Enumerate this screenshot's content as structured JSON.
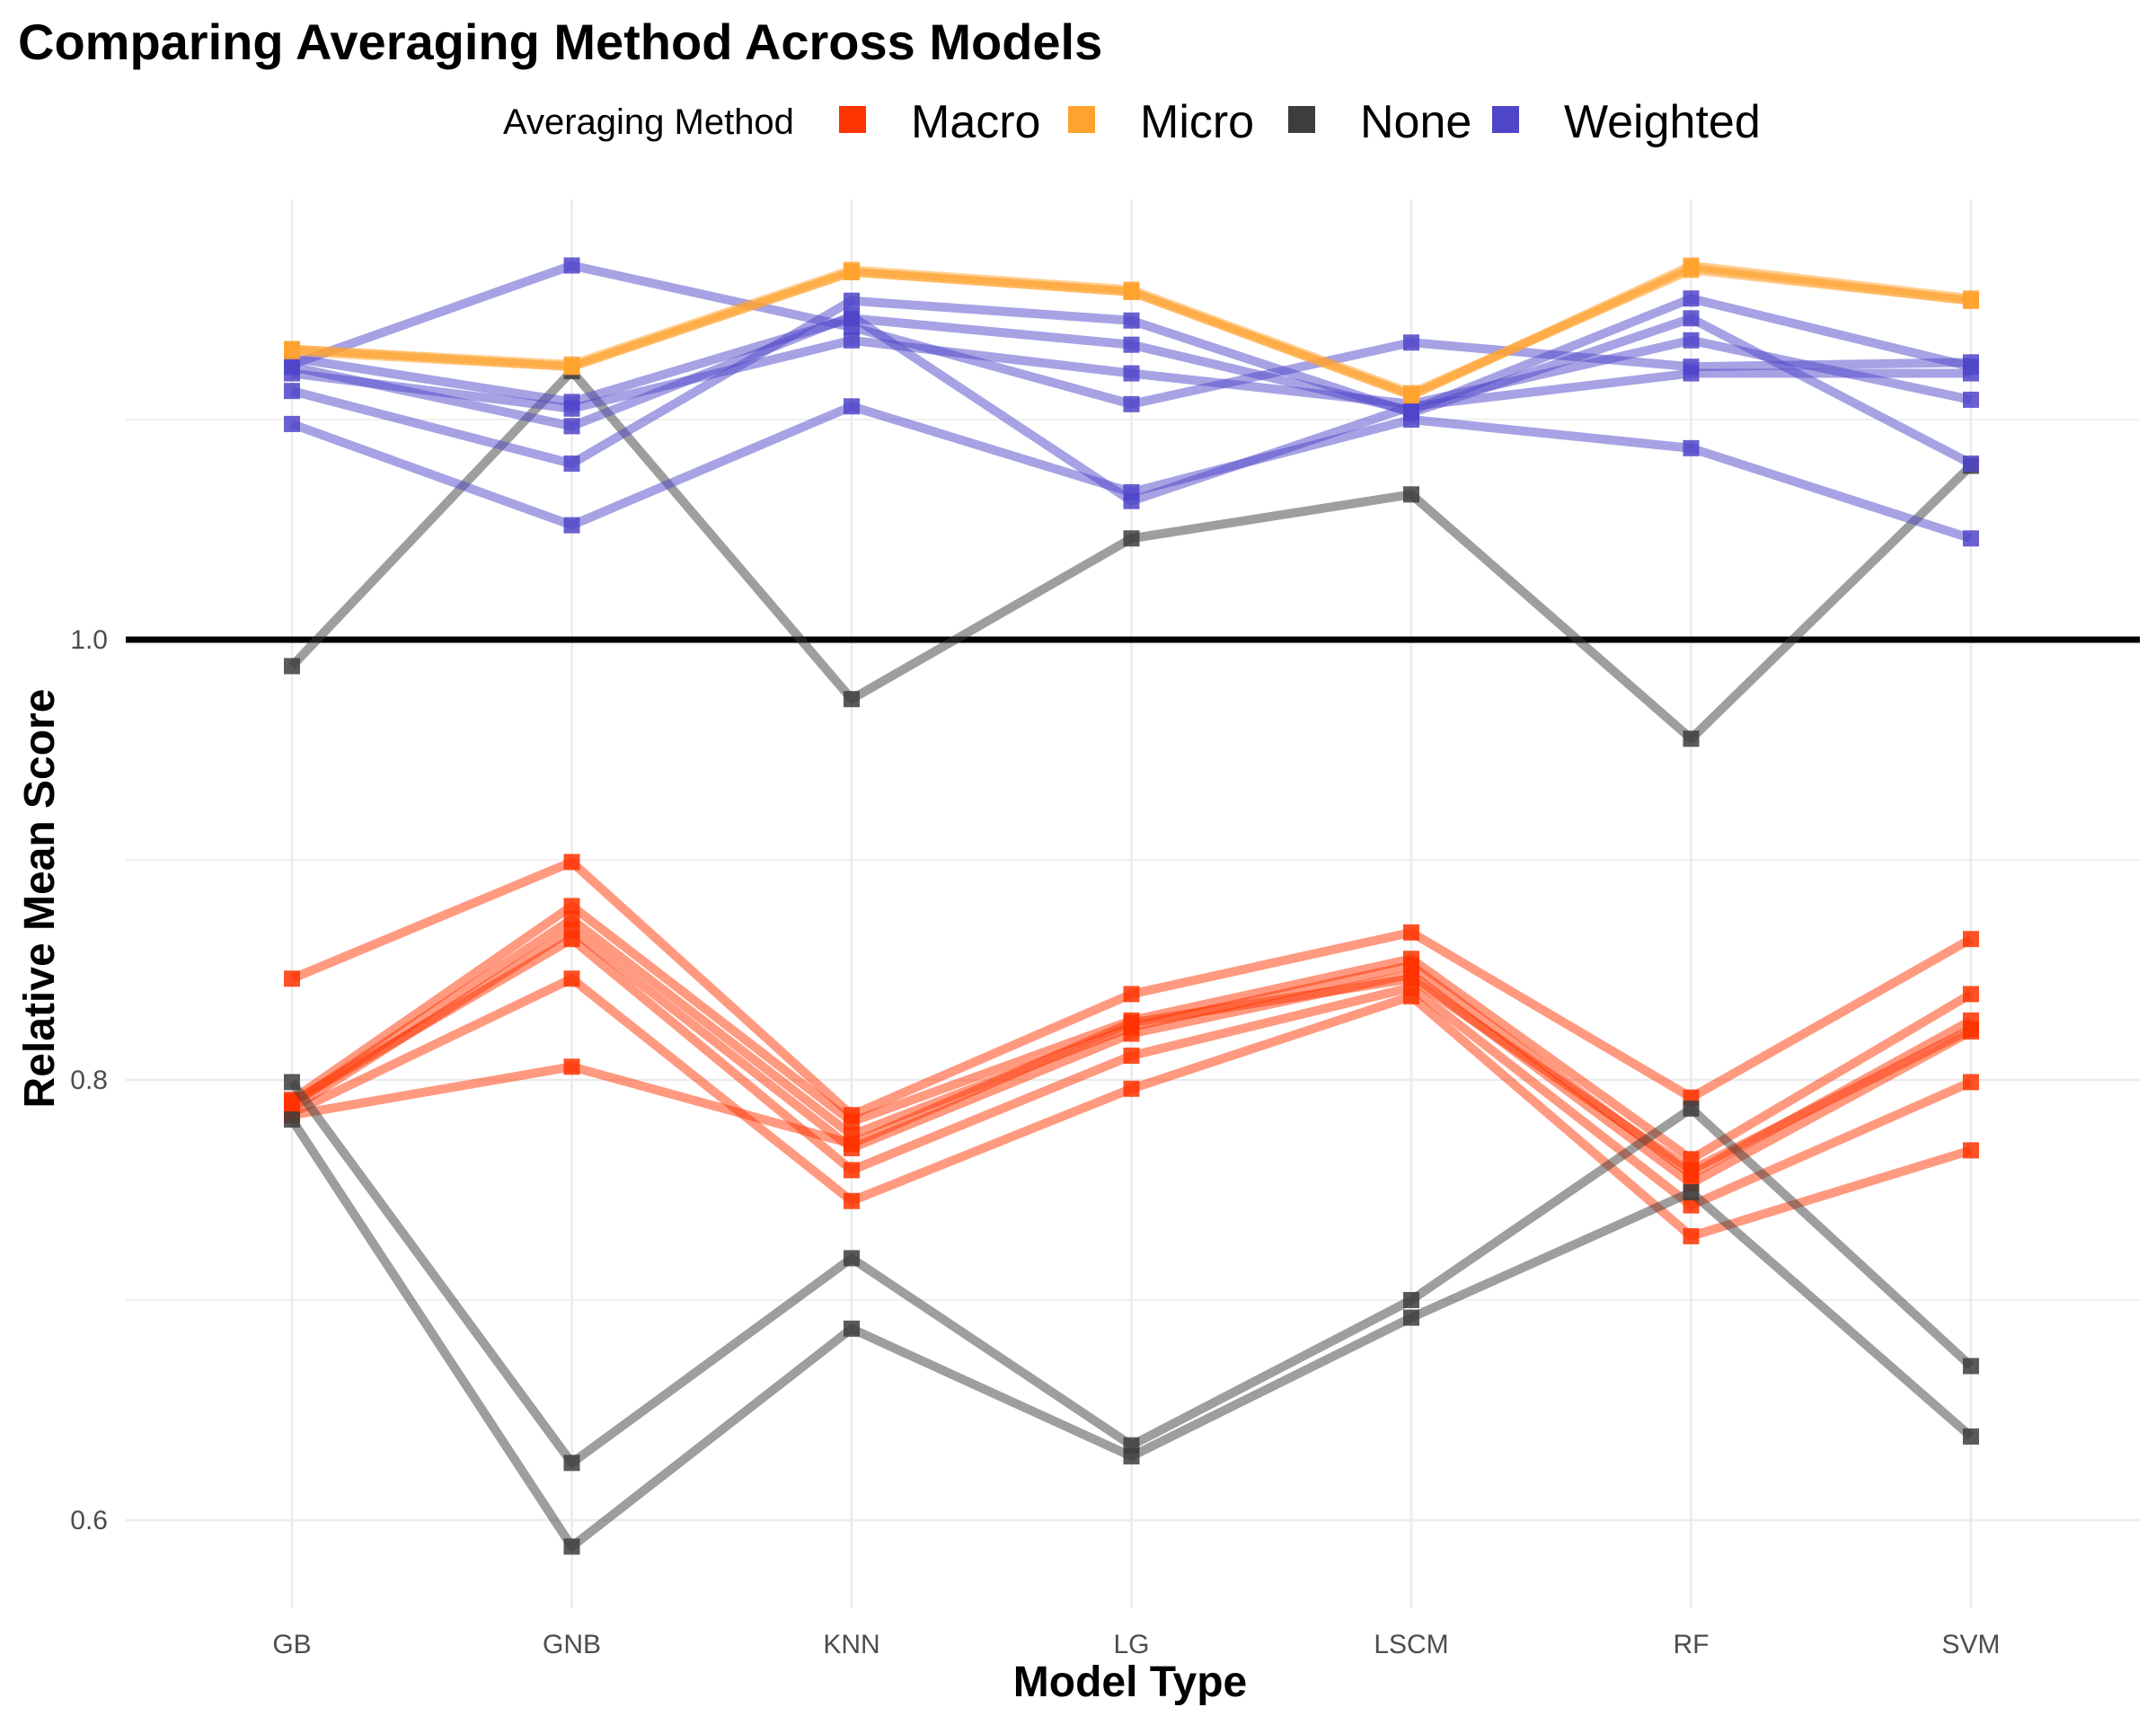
{
  "chart_data": {
    "type": "line",
    "title": "Comparing Averaging Method Across Models",
    "xlabel": "Model Type",
    "ylabel": "Relative Mean Score",
    "ylim": [
      0.56,
      1.2
    ],
    "y_ticks": [
      0.6,
      0.8,
      1.0
    ],
    "y_tick_labels": [
      "0.6",
      "0.8",
      "1.0"
    ],
    "reference_line": 1.0,
    "categories": [
      "GB",
      "GNB",
      "KNN",
      "LG",
      "LSCM",
      "RF",
      "SVM"
    ],
    "grid": true,
    "legend": {
      "title": "Averaging Method",
      "position": "top",
      "entries": [
        {
          "label": "Macro",
          "color": "#FF3300"
        },
        {
          "label": "Micro",
          "color": "#FFA22E"
        },
        {
          "label": "None",
          "color": "#3D3D3D"
        },
        {
          "label": "Weighted",
          "color": "#4F45C9"
        }
      ]
    },
    "series": [
      {
        "group": "Micro",
        "values": [
          1.132,
          1.125,
          1.168,
          1.159,
          1.112,
          1.168,
          1.154
        ]
      },
      {
        "group": "Micro",
        "values": [
          1.132,
          1.124,
          1.167,
          1.158,
          1.111,
          1.17,
          1.155
        ]
      },
      {
        "group": "Micro",
        "values": [
          1.131,
          1.124,
          1.167,
          1.158,
          1.111,
          1.169,
          1.154
        ]
      },
      {
        "group": "Weighted",
        "values": [
          1.125,
          1.17,
          1.142,
          1.107,
          1.135,
          1.124,
          1.126
        ]
      },
      {
        "group": "Weighted",
        "values": [
          1.121,
          1.105,
          1.136,
          1.121,
          1.107,
          1.136,
          1.109
        ]
      },
      {
        "group": "Weighted",
        "values": [
          1.113,
          1.08,
          1.154,
          1.145,
          1.103,
          1.146,
          1.08
        ]
      },
      {
        "group": "Weighted",
        "values": [
          1.128,
          1.108,
          1.146,
          1.134,
          1.104,
          1.155,
          1.124
        ]
      },
      {
        "group": "Weighted",
        "values": [
          1.098,
          1.052,
          1.106,
          1.067,
          1.1,
          1.087,
          1.046
        ]
      },
      {
        "group": "Weighted",
        "values": [
          1.124,
          1.097,
          1.147,
          1.063,
          1.106,
          1.121,
          1.121
        ]
      },
      {
        "group": "None",
        "values": [
          0.988,
          1.122,
          0.973,
          1.046,
          1.066,
          0.955,
          1.079
        ]
      },
      {
        "group": "None",
        "values": [
          0.799,
          0.626,
          0.719,
          0.634,
          0.7,
          0.787,
          0.67
        ]
      },
      {
        "group": "None",
        "values": [
          0.782,
          0.588,
          0.687,
          0.629,
          0.692,
          0.749,
          0.638
        ]
      },
      {
        "group": "Macro",
        "values": [
          0.846,
          0.899,
          0.784,
          0.839,
          0.867,
          0.792,
          0.864
        ]
      },
      {
        "group": "Macro",
        "values": [
          0.791,
          0.879,
          0.781,
          0.827,
          0.855,
          0.764,
          0.839
        ]
      },
      {
        "group": "Macro",
        "values": [
          0.789,
          0.873,
          0.775,
          0.824,
          0.852,
          0.757,
          0.827
        ]
      },
      {
        "group": "Macro",
        "values": [
          0.787,
          0.868,
          0.769,
          0.821,
          0.848,
          0.753,
          0.822
        ]
      },
      {
        "group": "Macro",
        "values": [
          0.79,
          0.864,
          0.759,
          0.811,
          0.842,
          0.743,
          0.799
        ]
      },
      {
        "group": "Macro",
        "values": [
          0.785,
          0.846,
          0.745,
          0.796,
          0.838,
          0.729,
          0.768
        ]
      },
      {
        "group": "Macro",
        "values": [
          0.784,
          0.806,
          0.771,
          0.826,
          0.846,
          0.759,
          0.823
        ]
      }
    ]
  }
}
